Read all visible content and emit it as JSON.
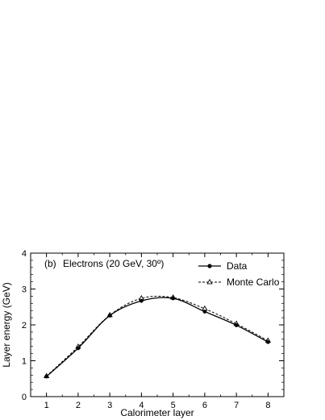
{
  "chart_data": {
    "type": "line",
    "panel_label": "(b)",
    "title": "Electrons (20 GeV, 30º)",
    "xlabel": "Calorimeter layer",
    "ylabel": "Layer energy (GeV)",
    "xlim": [
      0.5,
      8.5
    ],
    "ylim": [
      0,
      4
    ],
    "xticks": [
      "1",
      "2",
      "3",
      "4",
      "5",
      "6",
      "7",
      "8"
    ],
    "yticks": [
      "0",
      "1",
      "2",
      "3",
      "4"
    ],
    "grid": false,
    "legend_position": "top-right",
    "categories": [
      1,
      2,
      3,
      4,
      5,
      6,
      7,
      8
    ],
    "series": [
      {
        "name": "Data",
        "line_style": "solid",
        "marker": "filled-circle",
        "values": [
          0.56,
          1.35,
          2.26,
          2.67,
          2.74,
          2.37,
          1.99,
          1.52
        ]
      },
      {
        "name": "Monte Carlo",
        "line_style": "dashed",
        "marker": "open-triangle",
        "values": [
          0.57,
          1.39,
          2.27,
          2.74,
          2.76,
          2.45,
          2.03,
          1.56
        ]
      }
    ]
  }
}
